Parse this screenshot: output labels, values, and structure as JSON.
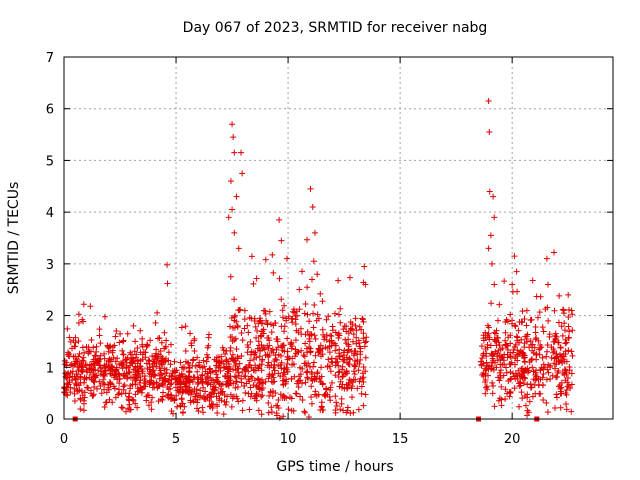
{
  "chart_data": {
    "type": "scatter",
    "title": "Day 067 of 2023, SRMTID for receiver nabg",
    "xlabel": "GPS time / hours",
    "ylabel": "SRMTID / TECUs",
    "xlim": [
      0,
      24.5
    ],
    "ylim": [
      0,
      7
    ],
    "xticks": [
      0,
      5,
      10,
      15,
      20
    ],
    "yticks": [
      0,
      1,
      2,
      3,
      4,
      5,
      6,
      7
    ],
    "grid": true,
    "marker": "+",
    "color": "#e00000",
    "segments": [
      {
        "start": 0.0,
        "end": 4.6,
        "base": 0.9,
        "spread": 0.45,
        "n": 520
      },
      {
        "start": 4.6,
        "end": 7.4,
        "base": 0.7,
        "spread": 0.45,
        "n": 300
      },
      {
        "start": 7.4,
        "end": 13.5,
        "base": 1.1,
        "spread": 0.75,
        "n": 650
      },
      {
        "start": 18.6,
        "end": 22.7,
        "base": 1.1,
        "spread": 0.6,
        "n": 420
      }
    ],
    "peaks": [
      {
        "x": 4.6,
        "y": 2.98
      },
      {
        "x": 4.62,
        "y": 2.62
      },
      {
        "x": 7.5,
        "y": 5.7
      },
      {
        "x": 7.55,
        "y": 5.45
      },
      {
        "x": 7.6,
        "y": 5.15
      },
      {
        "x": 7.45,
        "y": 4.6
      },
      {
        "x": 7.7,
        "y": 4.3
      },
      {
        "x": 7.9,
        "y": 5.15
      },
      {
        "x": 7.95,
        "y": 4.75
      },
      {
        "x": 7.5,
        "y": 4.05
      },
      {
        "x": 7.6,
        "y": 3.6
      },
      {
        "x": 7.8,
        "y": 3.3
      },
      {
        "x": 7.35,
        "y": 3.9
      },
      {
        "x": 9.6,
        "y": 3.85
      },
      {
        "x": 9.7,
        "y": 3.45
      },
      {
        "x": 9.95,
        "y": 3.1
      },
      {
        "x": 11.0,
        "y": 4.45
      },
      {
        "x": 11.1,
        "y": 4.1
      },
      {
        "x": 11.2,
        "y": 3.6
      },
      {
        "x": 11.15,
        "y": 3.05
      },
      {
        "x": 11.3,
        "y": 2.8
      },
      {
        "x": 13.4,
        "y": 2.95
      },
      {
        "x": 13.45,
        "y": 2.6
      },
      {
        "x": 18.95,
        "y": 6.15
      },
      {
        "x": 18.98,
        "y": 5.55
      },
      {
        "x": 19.0,
        "y": 4.4
      },
      {
        "x": 19.15,
        "y": 4.3
      },
      {
        "x": 19.2,
        "y": 3.9
      },
      {
        "x": 19.05,
        "y": 3.55
      },
      {
        "x": 18.95,
        "y": 3.3
      },
      {
        "x": 19.1,
        "y": 3.0
      },
      {
        "x": 19.2,
        "y": 2.6
      },
      {
        "x": 20.1,
        "y": 3.15
      },
      {
        "x": 20.2,
        "y": 2.85
      },
      {
        "x": 20.0,
        "y": 2.6
      },
      {
        "x": 21.55,
        "y": 3.1
      },
      {
        "x": 21.6,
        "y": 2.6
      },
      {
        "x": 22.5,
        "y": 2.4
      },
      {
        "x": 22.3,
        "y": 2.1
      }
    ],
    "baseline_markers": [
      0.5,
      18.5,
      21.1
    ]
  }
}
